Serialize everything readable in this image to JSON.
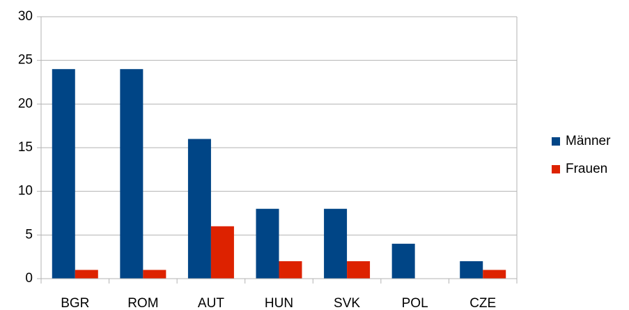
{
  "chart_data": {
    "type": "bar",
    "categories": [
      "BGR",
      "ROM",
      "AUT",
      "HUN",
      "SVK",
      "POL",
      "CZE"
    ],
    "series": [
      {
        "name": "Männer",
        "color": "#004586",
        "values": [
          24,
          24,
          16,
          8,
          8,
          4,
          2
        ]
      },
      {
        "name": "Frauen",
        "color": "#dd2200",
        "values": [
          1,
          1,
          6,
          2,
          2,
          0,
          1
        ]
      }
    ],
    "ylim": [
      0,
      30
    ],
    "yticks": [
      0,
      5,
      10,
      15,
      20,
      25,
      30
    ],
    "grid": true,
    "legend": "right"
  }
}
